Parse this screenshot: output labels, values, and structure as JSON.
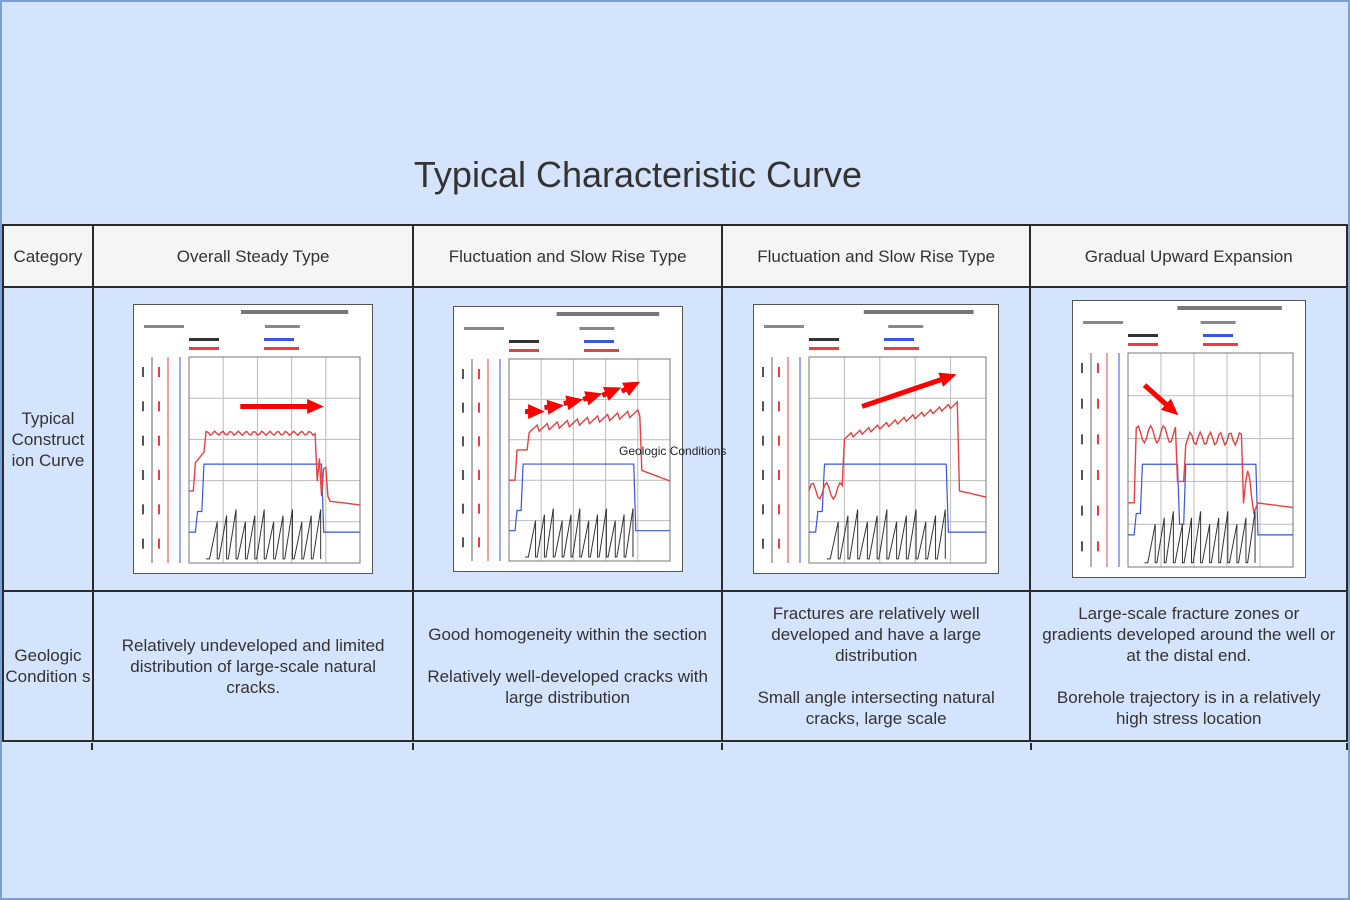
{
  "title": "Typical Characteristic Curve",
  "headers": {
    "category": "Category",
    "col1": "Overall Steady Type",
    "col2": "Fluctuation and Slow Rise Type",
    "col3": "Fluctuation and Slow Rise Type",
    "col4": "Gradual Upward Expansion"
  },
  "rows": {
    "curve_label": "Typical Construct ion Curve",
    "geo_label": "Geologic Condition s"
  },
  "geologic": {
    "col1_p1": "Relatively undeveloped and limited distribution of large-scale natural cracks.",
    "col2_p1": "Good homogeneity within the section",
    "col2_p2": "Relatively well-developed cracks with large distribution",
    "col3_p1": "Fractures are relatively well developed and have a large distribution",
    "col3_p2": "Small angle intersecting natural cracks, large scale",
    "col4_p1": "Large-scale fracture zones or gradients developed around the well or at the distal end.",
    "col4_p2": "Borehole trajectory is in a relatively high stress location"
  },
  "floating_label": "Geologic Conditions",
  "colors": {
    "background": "#d4e4fc",
    "header_bg": "#f5f5f5",
    "pressure_curve": "#e84040",
    "rate_curve": "#3a55e0",
    "proppant_curve": "#333333",
    "arrow": "#ff0000"
  },
  "chart_types": [
    "steady",
    "fluctuating-rise",
    "fluctuating-rise-strong",
    "gradual-expansion"
  ]
}
